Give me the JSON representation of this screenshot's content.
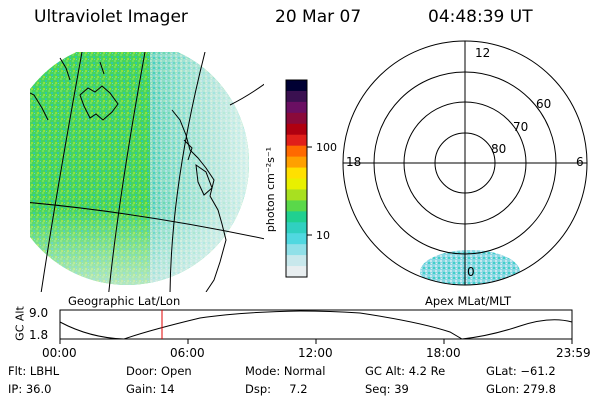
{
  "header": {
    "instrument": "Ultraviolet Imager",
    "date": "20 Mar 07",
    "time": "04:48:39 UT"
  },
  "colorbar": {
    "unit_label": "photon cm⁻²s⁻¹",
    "ticks": [
      "100",
      "10"
    ],
    "scale": "log",
    "colors": [
      "#000033",
      "#3a1050",
      "#6a0f62",
      "#8a0a3a",
      "#b00010",
      "#e0201a",
      "#ff6a00",
      "#ffa000",
      "#ffe000",
      "#e8f000",
      "#a8e020",
      "#5ad84a",
      "#20d090",
      "#30d0c0",
      "#50d8e0",
      "#90e0e8",
      "#c8e8ec",
      "#e8eef0"
    ]
  },
  "geo_panel": {
    "label": "Geographic Lat/Lon"
  },
  "polar_panel": {
    "label": "Apex MLat/MLT",
    "mlt_labels": {
      "top": "12",
      "left": "18",
      "right": "6",
      "bottom": "0"
    },
    "lat_labels": [
      "60",
      "70",
      "80"
    ]
  },
  "altitude_plot": {
    "ylabel": "GC Alt",
    "yticks": [
      "9.0",
      "1.8"
    ],
    "xticks": [
      "00:00",
      "06:00",
      "12:00",
      "18:00",
      "23:59"
    ],
    "current_time_marker": "04:48"
  },
  "info": {
    "filter": "Flt: LBHL",
    "ip": "IP: 36.0",
    "door": "Door: Open",
    "gain": "Gain: 14",
    "mode": "Mode: Normal",
    "dsp": "Dsp:     7.2",
    "gcalt": "GC Alt: 4.2 Re",
    "seq": "Seq: 39",
    "glat": "GLat: −61.2",
    "glon": "GLon: 279.8"
  }
}
